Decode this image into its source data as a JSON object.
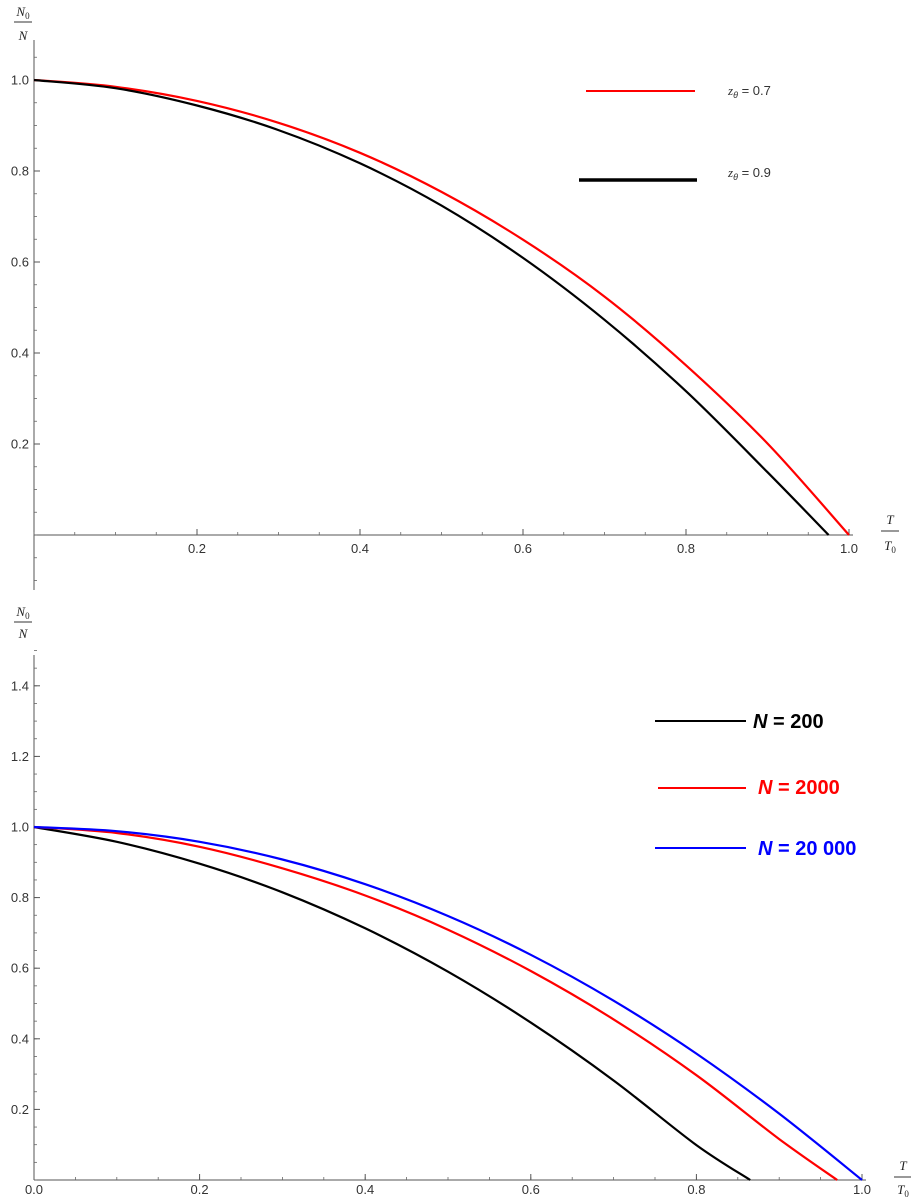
{
  "chart_data": [
    {
      "type": "line",
      "title": "",
      "xlabel": {
        "numerator": "T",
        "denominator": "T",
        "denominator_sub": "0"
      },
      "ylabel": {
        "numerator": "N",
        "numerator_sub": "0",
        "denominator": "N"
      },
      "xlim": [
        0,
        1.0
      ],
      "ylim": [
        -0.1,
        1.05
      ],
      "x_ticks": [
        0.2,
        0.4,
        0.6,
        0.8,
        1.0
      ],
      "x_tick_labels": [
        "0.2",
        "0.4",
        "0.6",
        "0.8",
        "1.0"
      ],
      "y_ticks": [
        0.2,
        0.4,
        0.6,
        0.8,
        1.0
      ],
      "y_tick_labels": [
        "0.2",
        "0.4",
        "0.6",
        "0.8",
        "1.0"
      ],
      "grid": false,
      "legend_position": "top-right",
      "series": [
        {
          "name_main": "z",
          "name_sub": "θ",
          "name_rest": " = 0.7",
          "color": "#ff0000",
          "x": [
            0,
            0.1,
            0.2,
            0.3,
            0.4,
            0.5,
            0.6,
            0.7,
            0.8,
            0.9,
            1.0
          ],
          "y": [
            1.0,
            0.985,
            0.954,
            0.906,
            0.84,
            0.754,
            0.649,
            0.524,
            0.373,
            0.201,
            0.0
          ]
        },
        {
          "name_main": "z",
          "name_sub": "θ",
          "name_rest": " = 0.9",
          "color": "#000000",
          "x": [
            0,
            0.1,
            0.2,
            0.3,
            0.4,
            0.5,
            0.6,
            0.7,
            0.8,
            0.9,
            0.975
          ],
          "y": [
            1.0,
            0.982,
            0.944,
            0.89,
            0.817,
            0.724,
            0.609,
            0.473,
            0.316,
            0.138,
            0.0
          ]
        }
      ]
    },
    {
      "type": "line",
      "title": "",
      "xlabel": {
        "numerator": "T",
        "denominator": "T",
        "denominator_sub": "0"
      },
      "ylabel": {
        "numerator": "N",
        "numerator_sub": "0",
        "denominator": "N"
      },
      "xlim": [
        0,
        1.0
      ],
      "ylim": [
        0,
        1.5
      ],
      "x_ticks": [
        0.0,
        0.2,
        0.4,
        0.6,
        0.8,
        1.0
      ],
      "x_tick_labels": [
        "0.0",
        "0.2",
        "0.4",
        "0.6",
        "0.8",
        "1.0"
      ],
      "y_ticks": [
        0.2,
        0.4,
        0.6,
        0.8,
        1.0,
        1.2,
        1.4
      ],
      "y_tick_labels": [
        "0.2",
        "0.4",
        "0.6",
        "0.8",
        "1.0",
        "1.2",
        "1.4"
      ],
      "grid": false,
      "legend_position": "top-right",
      "series": [
        {
          "name": "N = 200",
          "name_main": "N",
          "name_rest": " = 200",
          "color": "#000000",
          "x": [
            0,
            0.1,
            0.2,
            0.3,
            0.4,
            0.5,
            0.6,
            0.7,
            0.8,
            0.865
          ],
          "y": [
            1.0,
            0.958,
            0.896,
            0.815,
            0.713,
            0.59,
            0.446,
            0.282,
            0.099,
            0.0
          ]
        },
        {
          "name": "N = 2000",
          "name_main": "N",
          "name_rest": " = 2000",
          "color": "#ff0000",
          "x": [
            0,
            0.1,
            0.2,
            0.3,
            0.4,
            0.5,
            0.6,
            0.7,
            0.8,
            0.9,
            0.97
          ],
          "y": [
            1.0,
            0.983,
            0.944,
            0.883,
            0.806,
            0.709,
            0.592,
            0.455,
            0.297,
            0.116,
            0.0
          ]
        },
        {
          "name": "N = 20 000",
          "name_main": "N",
          "name_rest": " = 20 000",
          "color": "#0000ff",
          "x": [
            0,
            0.1,
            0.2,
            0.3,
            0.4,
            0.5,
            0.6,
            0.7,
            0.8,
            0.9,
            1.0
          ],
          "y": [
            1.0,
            0.988,
            0.958,
            0.908,
            0.838,
            0.748,
            0.638,
            0.508,
            0.358,
            0.188,
            0.0
          ]
        }
      ]
    }
  ]
}
